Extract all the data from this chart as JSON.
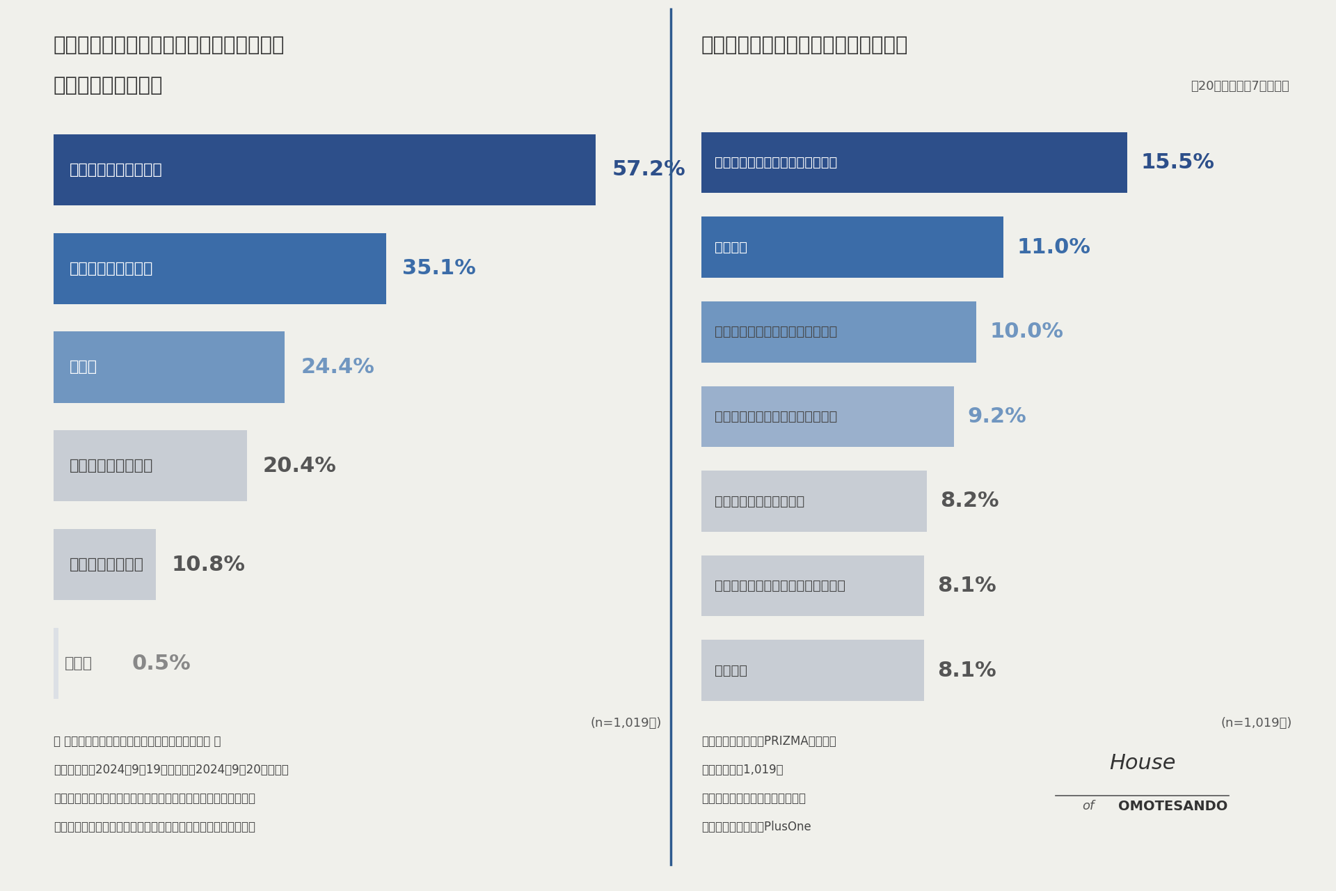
{
  "bg_color": "#f0f0eb",
  "divider_color": "#2d5a8e",
  "left_title_line1": "展示会の開催目的として当てはまるものを",
  "left_title_line2": "全て教えてください",
  "right_title": "展示会はどのエリアで行いましたか？",
  "right_subtitle": "全20項目中上位7項目抜粋",
  "left_categories": [
    "製品／サービスの紹介",
    "ビジネスマッチング",
    "人事系",
    "ブランディング向上",
    "キャンペーン発表",
    "その他"
  ],
  "left_values": [
    57.2,
    35.1,
    24.4,
    20.4,
    10.8,
    0.5
  ],
  "left_colors": [
    "#2d4f8a",
    "#3b6ca8",
    "#7096c0",
    "#c8cdd4",
    "#c8cdd4",
    "#dce0e5"
  ],
  "left_pct_colors": [
    "#2d4f8a",
    "#3b6ca8",
    "#7096c0",
    "#555555",
    "#555555",
    "#888888"
  ],
  "left_text_on_bar": [
    "#ffffff",
    "#ffffff",
    "#ffffff",
    "#444444",
    "#444444",
    "#666666"
  ],
  "right_categories": [
    "お台場・竹芝・晴美・豊洲エリア",
    "近畿地方",
    "東京駅・銀座・品川・皇居エリア",
    "渋谷・表参道・原宿・青山エリア",
    "新宿・中野・杉並エリア",
    "代官山・広尾・恵比寿・白金エリア",
    "中部地方"
  ],
  "right_values": [
    15.5,
    11.0,
    10.0,
    9.2,
    8.2,
    8.1,
    8.1
  ],
  "right_colors": [
    "#2d4f8a",
    "#3b6ca8",
    "#7096c0",
    "#9ab0cc",
    "#c8cdd4",
    "#c8cdd4",
    "#c8cdd4"
  ],
  "right_pct_colors": [
    "#2d4f8a",
    "#3b6ca8",
    "#7096c0",
    "#7096c0",
    "#555555",
    "#555555",
    "#555555"
  ],
  "right_text_on_bar": [
    "#ffffff",
    "#ffffff",
    "#444444",
    "#444444",
    "#444444",
    "#444444",
    "#444444"
  ],
  "n_text": "(n=1,019人)",
  "footer_left_lines": [
    "《 調査概要：「展示会の会場選び」に関する調査 》",
    "・調査期間：2024年9月19日（木）〜2024年9月20日（金）",
    "・調査対象：調査回答時に企業の展示会開催の担当者経験がある",
    "（合同展示会ではなく企業単体での展示会）と回答したモニター"
  ],
  "footer_right_lines": [
    "・モニター提供元：PRIZMAリサーチ",
    "・調査人数：1,019人",
    "・調査方法：インターネット調査",
    "・調査元：株式会社PlusOne"
  ],
  "logo_house": "House",
  "logo_of": "of",
  "logo_omotesando": "OMOTESANDO"
}
